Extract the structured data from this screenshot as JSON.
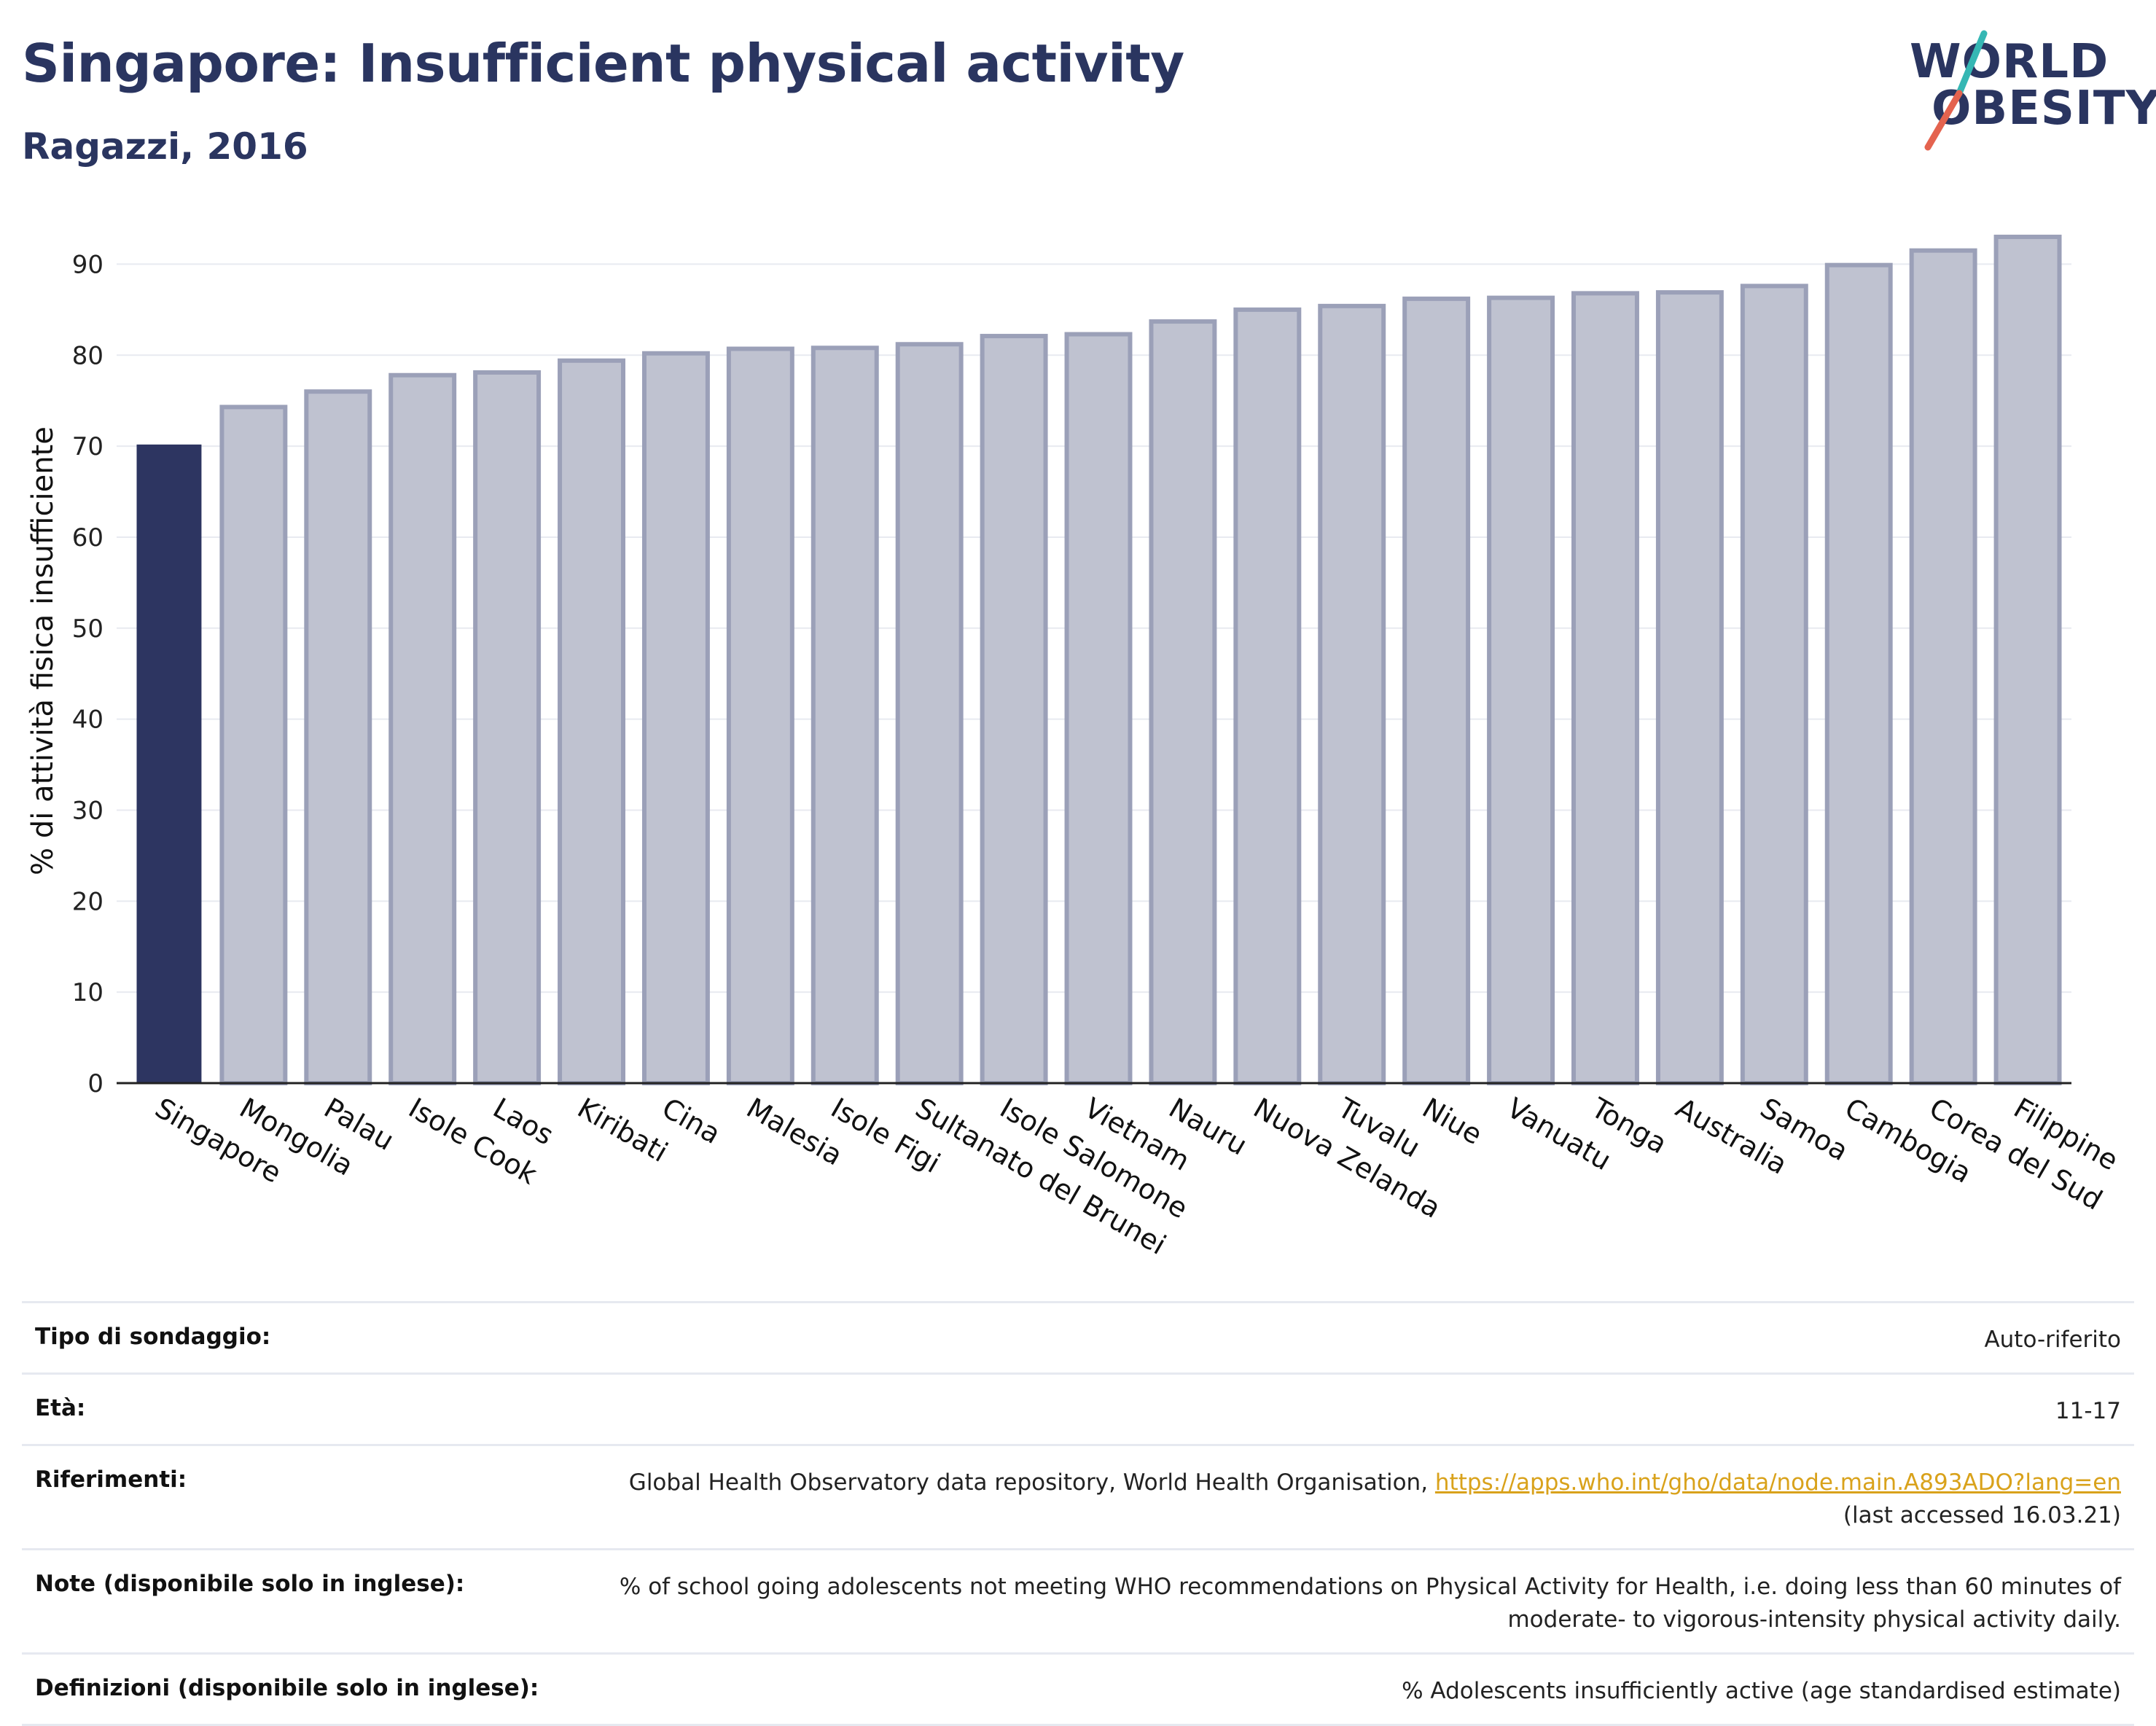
{
  "header": {
    "title": "Singapore: Insufficient physical activity",
    "subtitle": "Ragazzi, 2016"
  },
  "logo": {
    "line1": "WORLD",
    "line2": "OBESITY"
  },
  "colors": {
    "highlight": "#2d3561",
    "bar_fill": "#bfc2d0",
    "bar_stroke": "#9ba0b8",
    "grid": "#e8eaf0",
    "accent_teal": "#35b7b4",
    "accent_red": "#e4634f"
  },
  "chart_data": {
    "type": "bar",
    "ylabel": "% di attività fisica insufficiente",
    "xlabel": "",
    "ylim": [
      0,
      95
    ],
    "yticks": [
      0,
      10,
      20,
      30,
      40,
      50,
      60,
      70,
      80,
      90
    ],
    "grid": true,
    "highlight": "Singapore",
    "categories": [
      "Singapore",
      "Mongolia",
      "Palau",
      "Isole Cook",
      "Laos",
      "Kiribati",
      "Cina",
      "Malesia",
      "Isole Figi",
      "Sultanato del Brunei",
      "Isole Salomone",
      "Vietnam",
      "Nauru",
      "Nuova Zelanda",
      "Tuvalu",
      "Niue",
      "Vanuatu",
      "Tonga",
      "Australia",
      "Samoa",
      "Cambogia",
      "Corea del Sud",
      "Filippine"
    ],
    "values": [
      70.1,
      74.3,
      76.0,
      77.8,
      78.1,
      79.4,
      80.2,
      80.7,
      80.8,
      81.2,
      82.1,
      82.3,
      83.7,
      85.0,
      85.4,
      86.2,
      86.3,
      86.8,
      86.9,
      87.6,
      89.9,
      91.5,
      93.0
    ]
  },
  "info_table": [
    {
      "key": "Tipo di sondaggio:",
      "value": "Auto-riferito"
    },
    {
      "key": "Età:",
      "value": "11-17"
    },
    {
      "key": "Riferimenti:",
      "value": "Global Health Observatory data repository, World Health Organisation, ",
      "link": "https://apps.who.int/gho/data/node.main.A893ADO?lang=en",
      "value2": "(last accessed 16.03.21)"
    },
    {
      "key": "Note (disponibile solo in inglese):",
      "value": "% of school going adolescents not meeting WHO recommendations on Physical Activity for Health, i.e. doing less than 60 minutes of",
      "value2": "moderate- to vigorous-intensity physical activity daily."
    },
    {
      "key": "Definizioni (disponibile solo in inglese):",
      "value": "% Adolescents insufficiently active (age standardised estimate)"
    }
  ]
}
